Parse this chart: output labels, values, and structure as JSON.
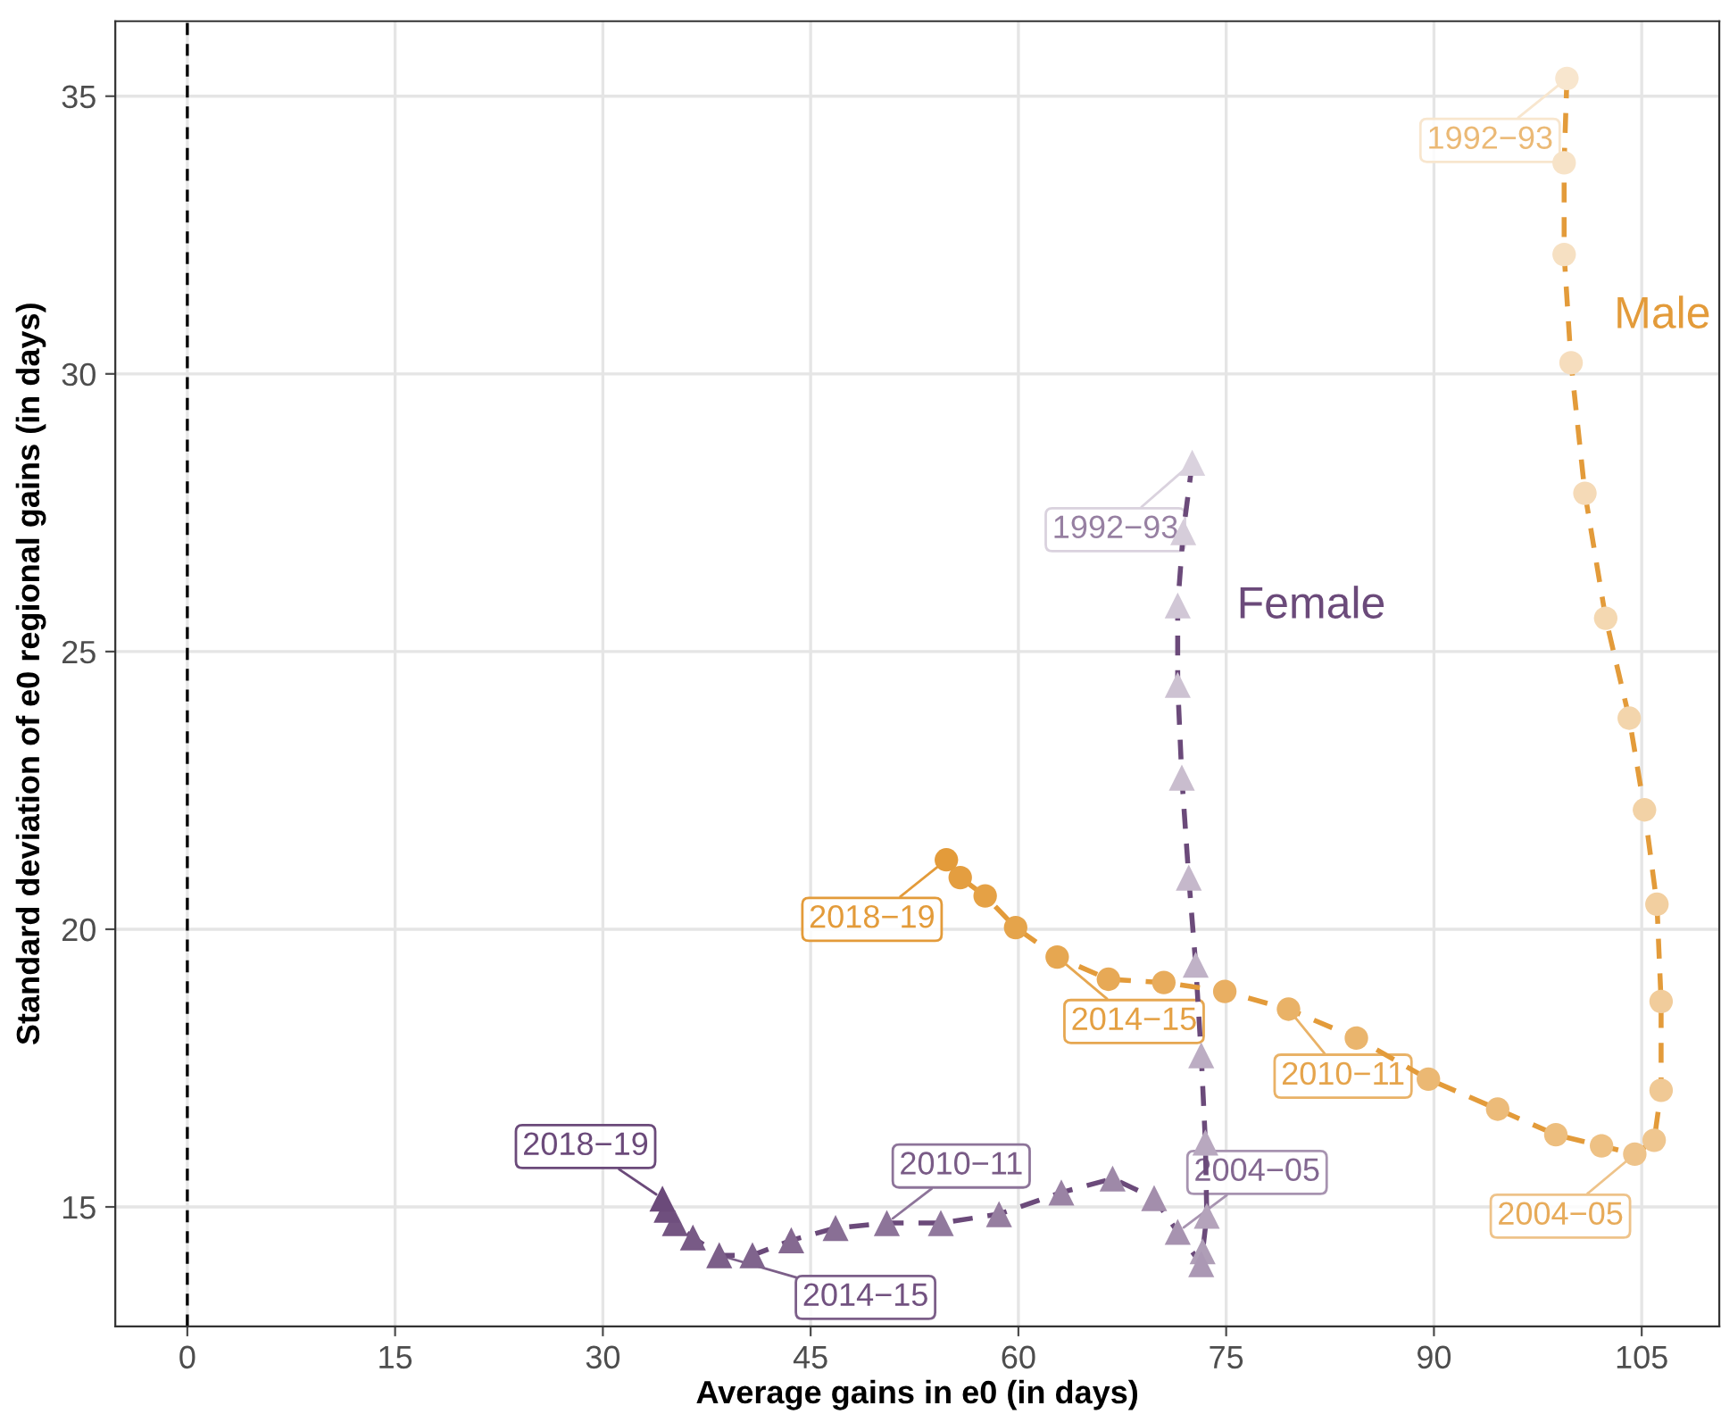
{
  "chart_data": {
    "type": "line",
    "xlabel": "Average gains in e0 (in days)",
    "ylabel": "Standard deviation of e0 regional gains (in days)",
    "xlim": [
      -5.2,
      110.6
    ],
    "ylim": [
      12.85,
      36.35
    ],
    "xticks": [
      0,
      15,
      30,
      45,
      60,
      75,
      90,
      105
    ],
    "yticks": [
      15,
      20,
      25,
      30,
      35
    ],
    "grid": true,
    "line_style": "dashed",
    "ref_lines": [
      {
        "axis": "x",
        "value": 0,
        "color": "#000000",
        "line_style": "dashed"
      }
    ],
    "series": [
      {
        "name": "Female",
        "marker": "triangle",
        "color": "#6b4a7a",
        "x": [
          72.55,
          71.9,
          71.5,
          71.5,
          71.8,
          72.3,
          72.8,
          73.2,
          73.5,
          73.6,
          73.3,
          73.2,
          71.5,
          69.8,
          66.8,
          63.1,
          58.6,
          54.4,
          50.5,
          46.8,
          43.6,
          40.8,
          38.4,
          36.5,
          35.2,
          34.6,
          34.3
        ],
        "values": [
          28.4,
          27.15,
          25.83,
          24.4,
          22.73,
          20.93,
          19.36,
          17.73,
          16.16,
          14.84,
          14.2,
          13.97,
          14.55,
          15.16,
          15.51,
          15.26,
          14.87,
          14.71,
          14.71,
          14.62,
          14.4,
          14.13,
          14.13,
          14.45,
          14.71,
          14.95,
          15.15
        ],
        "colors": [
          "#dad2de",
          "#d6cdda",
          "#d1c7d6",
          "#cdc2d2",
          "#c9bdce",
          "#c5b8cb",
          "#c0b2c7",
          "#bcadc3",
          "#b8a8bf",
          "#b4a3bb",
          "#af9eb7",
          "#ab98b4",
          "#a793b0",
          "#a38eac",
          "#9e89a8",
          "#9a83a4",
          "#967ea0",
          "#91799d",
          "#8d7499",
          "#896f95",
          "#856991",
          "#80648d",
          "#7c5f89",
          "#785a86",
          "#745582",
          "#6f4f7e",
          "#6b4a7a"
        ]
      },
      {
        "name": "Male",
        "marker": "circle",
        "color": "#e39b3a",
        "x": [
          99.6,
          99.4,
          99.4,
          99.9,
          100.9,
          102.4,
          104.1,
          105.2,
          106.1,
          106.4,
          106.4,
          105.9,
          104.5,
          102.1,
          98.8,
          94.6,
          89.6,
          84.4,
          79.5,
          74.9,
          70.5,
          66.5,
          62.8,
          59.8,
          57.6,
          55.8,
          54.8
        ],
        "values": [
          35.32,
          33.8,
          32.15,
          30.2,
          27.85,
          25.6,
          23.8,
          22.15,
          20.45,
          18.7,
          17.1,
          16.2,
          15.95,
          16.1,
          16.3,
          16.76,
          17.3,
          18.04,
          18.56,
          18.88,
          19.04,
          19.1,
          19.5,
          20.03,
          20.6,
          20.93,
          21.25
        ],
        "colors": [
          "#f8e6ce",
          "#f7e3c8",
          "#f6e0c2",
          "#f6ddbd",
          "#f5dab7",
          "#f4d8b1",
          "#f3d5ac",
          "#f2d2a6",
          "#f2cfa0",
          "#f1cc9b",
          "#f0c995",
          "#efc68f",
          "#eec38a",
          "#eec184",
          "#edbe7e",
          "#ecbb79",
          "#ebb873",
          "#eab56d",
          "#e9b267",
          "#e9af62",
          "#e8ac5c",
          "#e7a956",
          "#e6a751",
          "#e5a44b",
          "#e5a145",
          "#e49e40",
          "#e39b3a"
        ]
      }
    ],
    "annotations": [
      {
        "text": "1992−93",
        "x": 72.55,
        "y": 28.4
      },
      {
        "text": "2004−05",
        "x": 71.5,
        "y": 14.55
      },
      {
        "text": "2010−11",
        "x": 50.5,
        "y": 14.71
      },
      {
        "text": "2014−15",
        "x": 38.4,
        "y": 14.13
      },
      {
        "text": "2018−19",
        "x": 34.3,
        "y": 15.15
      },
      {
        "text": "1992−93",
        "x": 99.6,
        "y": 35.32
      },
      {
        "text": "2004−05",
        "x": 104.5,
        "y": 15.95
      },
      {
        "text": "2010−11",
        "x": 79.5,
        "y": 18.56
      },
      {
        "text": "2014−15",
        "x": 62.8,
        "y": 19.5
      },
      {
        "text": "2018−19",
        "x": 54.8,
        "y": 21.25
      }
    ]
  }
}
